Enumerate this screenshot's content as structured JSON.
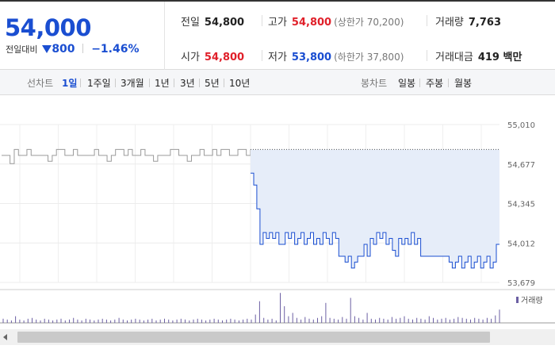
{
  "summary": {
    "current_price": "54,000",
    "change_label": "전일대비",
    "change_amount": "800",
    "change_pct": "−1.46%",
    "stats": {
      "prev_close_label": "전일",
      "prev_close": "54,800",
      "high_label": "고가",
      "high": "54,800",
      "upper_limit": "(상한가 70,200)",
      "volume_label": "거래량",
      "volume": "7,763",
      "open_label": "시가",
      "open": "54,800",
      "low_label": "저가",
      "low": "53,800",
      "lower_limit": "(하한가 37,800)",
      "amount_label": "거래대금",
      "amount": "419 백만"
    }
  },
  "toolbar": {
    "line_chart_label": "선차트",
    "periods": [
      "1일",
      "1주일",
      "3개월",
      "1년",
      "3년",
      "5년",
      "10년"
    ],
    "active_period": "1일",
    "candle_chart_label": "봉차트",
    "candle_periods": [
      "일봉",
      "주봉",
      "월봉"
    ]
  },
  "colors": {
    "up": "#e0202a",
    "down": "#1a4ed1",
    "line_today": "#1a4ed1",
    "line_prev": "#9a9a9a",
    "fill_today": "#e6edf9",
    "volume_bar": "#6b5fa3"
  },
  "chart_data": {
    "type": "line",
    "y_ticks": [
      "55,010",
      "54,677",
      "54,345",
      "54,012",
      "53,679"
    ],
    "ylim": [
      53679,
      55010
    ],
    "prev_close_line": 54800,
    "volume_legend": "거래량",
    "series": [
      {
        "values": [
          54750,
          54750,
          54680,
          54800,
          54750,
          54750,
          54800,
          54750,
          54750,
          54750,
          54750,
          54700,
          54750,
          54800,
          54800,
          54750,
          54750,
          54800,
          54750,
          54750,
          54750,
          54750,
          54800,
          54750,
          54750,
          54700,
          54750,
          54800,
          54800,
          54750,
          54800,
          54750,
          54750,
          54800,
          54750,
          54750,
          54700,
          54750,
          54750,
          54750,
          54800,
          54800,
          54750,
          54750,
          54700,
          54750,
          54750,
          54800,
          54750,
          54750,
          54800,
          54750,
          54800,
          54800,
          54750,
          54750,
          54800,
          54800,
          54750,
          54800
        ]
      },
      {
        "values": [
          54600,
          54500,
          54300,
          54000,
          54100,
          54050,
          54100,
          54050,
          54100,
          54000,
          54000,
          54100,
          54050,
          54100,
          54000,
          54050,
          54100,
          54000,
          54050,
          54100,
          54000,
          54050,
          54000,
          54100,
          54050,
          54000,
          54100,
          54050,
          53900,
          53900,
          53850,
          53900,
          53800,
          53850,
          53900,
          53900,
          54000,
          53900,
          54050,
          54000,
          54100,
          54050,
          54100,
          54000,
          54050,
          53950,
          53900,
          54050,
          54000,
          54050,
          54000,
          54100,
          54000,
          54050,
          53900,
          53900,
          53900,
          53900,
          53900,
          53900,
          53900,
          53900,
          53900,
          53850,
          53800,
          53850,
          53900,
          53800,
          53850,
          53900,
          53800,
          53850,
          53900,
          53800,
          53850,
          53900,
          53800,
          53850,
          54000,
          54000
        ]
      }
    ],
    "volume": [
      5,
      4,
      3,
      8,
      4,
      3,
      5,
      6,
      4,
      3,
      5,
      4,
      3,
      4,
      5,
      3,
      4,
      6,
      4,
      3,
      5,
      4,
      3,
      4,
      5,
      4,
      3,
      4,
      6,
      4,
      3,
      4,
      5,
      4,
      3,
      4,
      5,
      3,
      4,
      5,
      4,
      3,
      4,
      5,
      4,
      3,
      4,
      5,
      4,
      3,
      4,
      5,
      4,
      3,
      4,
      5,
      4,
      3,
      4,
      5,
      4,
      10,
      26,
      6,
      4,
      5,
      3,
      36,
      20,
      8,
      12,
      6,
      4,
      7,
      5,
      4,
      6,
      8,
      24,
      6,
      5,
      4,
      7,
      5,
      30,
      8,
      6,
      4,
      12,
      5,
      4,
      6,
      5,
      4,
      7,
      5,
      6,
      8,
      5,
      4,
      6,
      5,
      4,
      8,
      6,
      4,
      5,
      6,
      4,
      5,
      7,
      6,
      5,
      4,
      6,
      5,
      4,
      6,
      5,
      9,
      16
    ]
  }
}
